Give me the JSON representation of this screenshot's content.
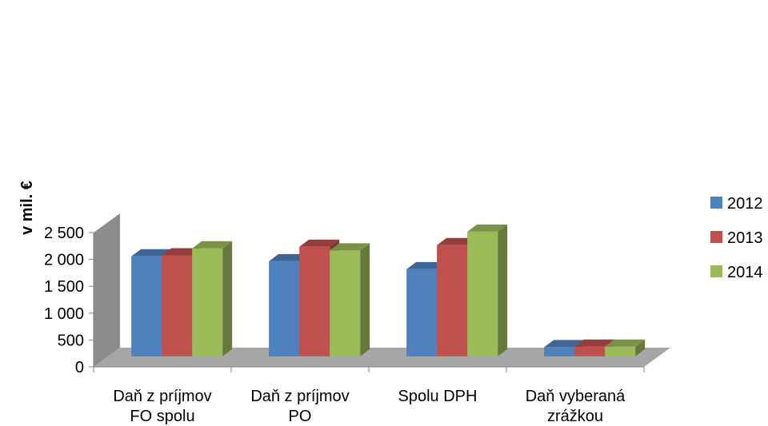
{
  "chart_data": {
    "type": "bar",
    "categories": [
      [
        "Daň z príjmov",
        "FO spolu"
      ],
      [
        "Daň z príjmov",
        "PO"
      ],
      [
        "Spolu DPH"
      ],
      [
        "Daň vyberaná",
        "zrážkou"
      ]
    ],
    "series": [
      {
        "name": "2012",
        "color": "#4F81BD",
        "values": [
          1860,
          1770,
          1620,
          170
        ]
      },
      {
        "name": "2013",
        "color": "#C0504D",
        "values": [
          1880,
          2040,
          2070,
          180
        ]
      },
      {
        "name": "2014",
        "color": "#9BBB59",
        "values": [
          2010,
          1970,
          2320,
          180
        ]
      }
    ],
    "yticks": [
      "0",
      "500",
      "1 000",
      "1 500",
      "2 000",
      "2 500"
    ],
    "ylim": [
      0,
      2500
    ],
    "ylabel": "v mil. €",
    "xlabel": "",
    "title": "",
    "legend_position": "right",
    "style": "3d-clustered-column"
  }
}
